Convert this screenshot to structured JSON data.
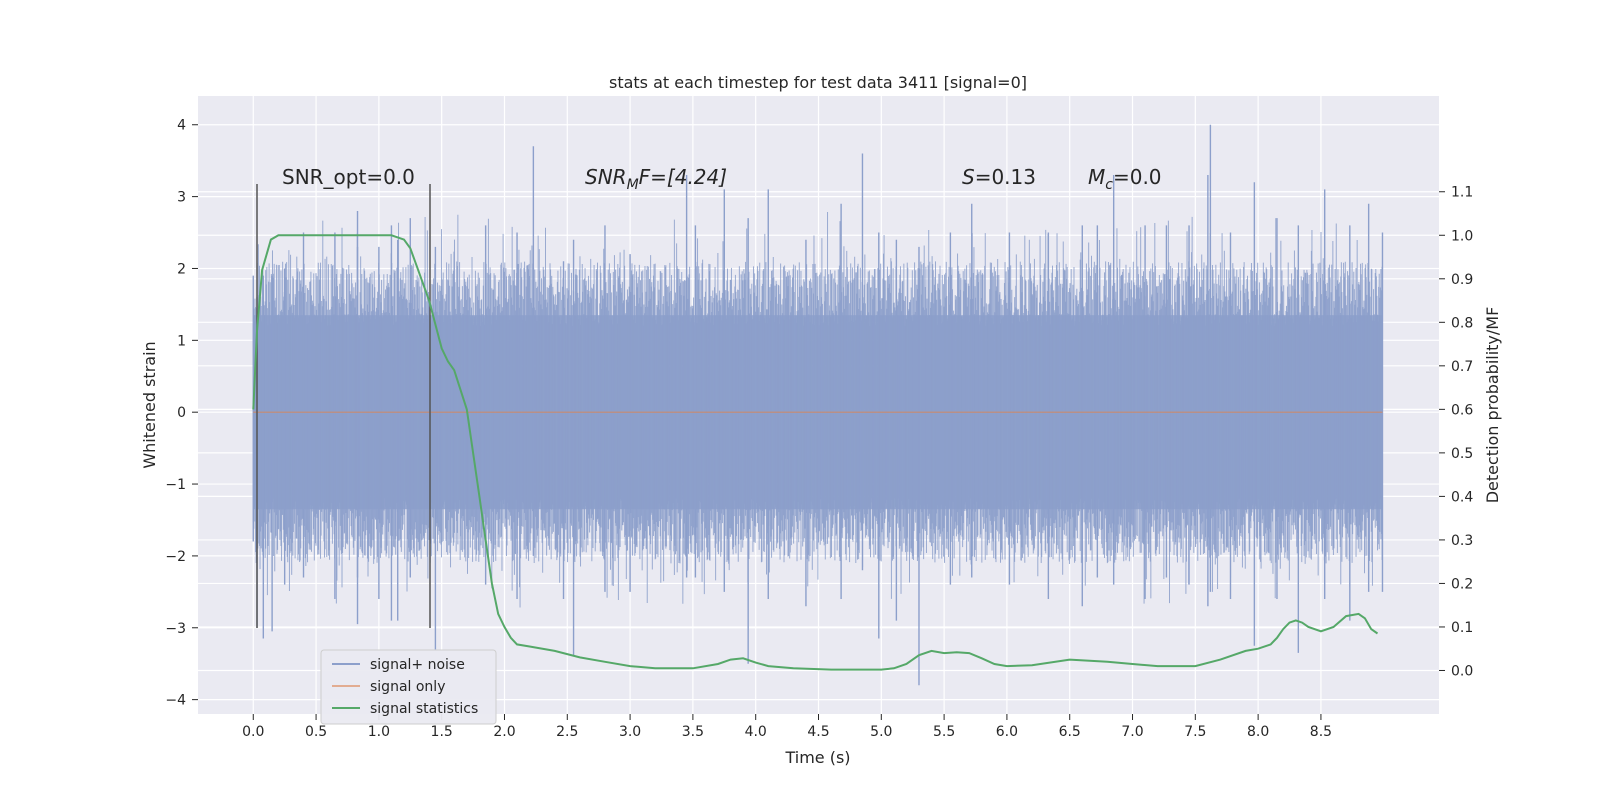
{
  "chart_data": {
    "type": "line",
    "title": "stats at each timestep for test data 3411 [signal=0]",
    "xlabel": "Time (s)",
    "ylabel": "Whitened strain",
    "y2label": "Detection probability/MF",
    "xlim": [
      -0.44,
      9.44
    ],
    "ylim": [
      -4.2,
      4.4
    ],
    "y2lim": [
      -0.1,
      1.32
    ],
    "xticks": [
      0.0,
      0.5,
      1.0,
      1.5,
      2.0,
      2.5,
      3.0,
      3.5,
      4.0,
      4.5,
      5.0,
      5.5,
      6.0,
      6.5,
      7.0,
      7.5,
      8.0,
      8.5
    ],
    "xtick_labels": [
      "0.0",
      "0.5",
      "1.0",
      "1.5",
      "2.0",
      "2.5",
      "3.0",
      "3.5",
      "4.0",
      "4.5",
      "5.0",
      "5.5",
      "6.0",
      "6.5",
      "7.0",
      "7.5",
      "8.0",
      "8.5"
    ],
    "yticks": [
      4,
      3,
      2,
      1,
      0,
      -1,
      -2,
      -3,
      -4
    ],
    "ytick_labels": [
      "4",
      "3",
      "2",
      "1",
      "0",
      "−1",
      "−2",
      "−3",
      "−4"
    ],
    "y2ticks": [
      1.1,
      1.0,
      0.9,
      0.8,
      0.7,
      0.6,
      0.5,
      0.4,
      0.3,
      0.2,
      0.1,
      0.0
    ],
    "y2tick_labels": [
      "1.1",
      "1.0",
      "0.9",
      "0.8",
      "0.7",
      "0.6",
      "0.5",
      "0.4",
      "0.3",
      "0.2",
      "0.1",
      "0.0"
    ],
    "grid": true,
    "legend_position": "bottom-left",
    "colors": {
      "noise": "#8c9fcb",
      "signal": "#dd8452",
      "stats": "#55a868",
      "background": "#eaeaf2",
      "vline": "#555555"
    },
    "legend": [
      "signal+ noise",
      "signal only",
      "signal statistics"
    ],
    "annotations": {
      "snr_opt": "SNR_opt=0.0",
      "snr_mf_base": "SNR",
      "snr_mf_sub": "M",
      "snr_mf_rest": "F=[4.24]",
      "s_var": "S",
      "s_val": "=0.13",
      "mc_var": "M",
      "mc_sub": "c",
      "mc_val": "=0.0"
    },
    "series": [
      {
        "name": "signal+ noise",
        "axis": "left",
        "x_start": 0.0,
        "x_end": 8.99,
        "envelope_q": 1.35,
        "spikes": [
          [
            0.0,
            1.9,
            -1.8
          ],
          [
            0.03,
            1.6,
            -3.0
          ],
          [
            0.08,
            1.9,
            -3.15
          ],
          [
            0.15,
            1.9,
            -3.05
          ],
          [
            0.25,
            2.0,
            -2.4
          ],
          [
            0.4,
            2.5,
            -2.3
          ],
          [
            0.65,
            2.5,
            -2.6
          ],
          [
            0.83,
            2.8,
            -2.3
          ],
          [
            0.83,
            2.3,
            -2.95
          ],
          [
            1.0,
            2.3,
            -2.6
          ],
          [
            1.1,
            2.6,
            -2.9
          ],
          [
            1.15,
            2.4,
            -2.9
          ],
          [
            1.25,
            2.7,
            -2.3
          ],
          [
            1.45,
            2.3,
            -3.3
          ],
          [
            1.85,
            2.6,
            -2.4
          ],
          [
            2.1,
            2.5,
            -2.6
          ],
          [
            2.23,
            3.7,
            -2.0
          ],
          [
            2.47,
            2.1,
            -2.6
          ],
          [
            2.55,
            2.4,
            -3.4
          ],
          [
            2.8,
            2.6,
            -2.5
          ],
          [
            3.0,
            2.2,
            -2.5
          ],
          [
            3.45,
            3.3,
            -2.3
          ],
          [
            3.52,
            2.6,
            -2.3
          ],
          [
            3.75,
            3.1,
            -2.5
          ],
          [
            3.94,
            2.7,
            -3.5
          ],
          [
            4.1,
            3.1,
            -2.6
          ],
          [
            4.4,
            2.4,
            -2.7
          ],
          [
            4.68,
            2.9,
            -2.6
          ],
          [
            4.85,
            3.6,
            -2.2
          ],
          [
            4.98,
            2.5,
            -3.15
          ],
          [
            5.12,
            2.4,
            -2.9
          ],
          [
            5.3,
            2.3,
            -3.8
          ],
          [
            5.55,
            2.5,
            -2.4
          ],
          [
            5.72,
            2.9,
            -2.3
          ],
          [
            6.02,
            2.5,
            -2.4
          ],
          [
            6.33,
            2.5,
            -2.6
          ],
          [
            6.6,
            2.6,
            -2.7
          ],
          [
            6.72,
            2.6,
            -2.3
          ],
          [
            6.85,
            3.3,
            -2.4
          ],
          [
            7.1,
            2.6,
            -2.6
          ],
          [
            7.27,
            2.6,
            -2.3
          ],
          [
            7.45,
            2.6,
            -2.4
          ],
          [
            7.6,
            3.3,
            -2.7
          ],
          [
            7.62,
            4.0,
            -2.5
          ],
          [
            7.78,
            2.5,
            -2.6
          ],
          [
            7.97,
            3.2,
            -3.25
          ],
          [
            8.15,
            2.7,
            -2.6
          ],
          [
            8.32,
            2.6,
            -3.35
          ],
          [
            8.53,
            3.1,
            -2.6
          ],
          [
            8.73,
            2.6,
            -2.9
          ],
          [
            8.88,
            2.9,
            -2.5
          ],
          [
            8.99,
            2.5,
            -2.5
          ]
        ]
      },
      {
        "name": "signal only",
        "axis": "left",
        "x": [
          0.0,
          8.99
        ],
        "y": [
          0.0,
          0.0
        ]
      },
      {
        "name": "signal statistics",
        "axis": "right",
        "x": [
          0.0,
          0.03,
          0.07,
          0.14,
          0.2,
          0.3,
          0.5,
          0.8,
          1.0,
          1.1,
          1.2,
          1.25,
          1.3,
          1.4,
          1.5,
          1.55,
          1.6,
          1.7,
          1.75,
          1.8,
          1.85,
          1.9,
          1.95,
          2.0,
          2.05,
          2.1,
          2.2,
          2.4,
          2.6,
          2.8,
          3.0,
          3.2,
          3.5,
          3.7,
          3.8,
          3.9,
          4.0,
          4.1,
          4.3,
          4.6,
          5.0,
          5.1,
          5.2,
          5.3,
          5.4,
          5.5,
          5.6,
          5.7,
          5.8,
          5.9,
          6.0,
          6.2,
          6.5,
          6.8,
          7.0,
          7.2,
          7.5,
          7.7,
          7.9,
          8.0,
          8.1,
          8.15,
          8.2,
          8.25,
          8.3,
          8.35,
          8.4,
          8.5,
          8.6,
          8.7,
          8.8,
          8.85,
          8.9,
          8.95
        ],
        "y": [
          0.6,
          0.78,
          0.92,
          0.99,
          1.0,
          1.0,
          1.0,
          1.0,
          1.0,
          1.0,
          0.99,
          0.97,
          0.93,
          0.85,
          0.74,
          0.71,
          0.69,
          0.6,
          0.5,
          0.4,
          0.3,
          0.2,
          0.13,
          0.1,
          0.075,
          0.06,
          0.055,
          0.045,
          0.03,
          0.02,
          0.01,
          0.005,
          0.005,
          0.015,
          0.025,
          0.028,
          0.018,
          0.01,
          0.005,
          0.002,
          0.002,
          0.005,
          0.015,
          0.035,
          0.045,
          0.04,
          0.042,
          0.04,
          0.028,
          0.015,
          0.01,
          0.012,
          0.025,
          0.02,
          0.015,
          0.01,
          0.01,
          0.025,
          0.045,
          0.05,
          0.06,
          0.075,
          0.095,
          0.11,
          0.115,
          0.11,
          0.1,
          0.09,
          0.1,
          0.125,
          0.13,
          0.12,
          0.095,
          0.085
        ]
      }
    ]
  }
}
